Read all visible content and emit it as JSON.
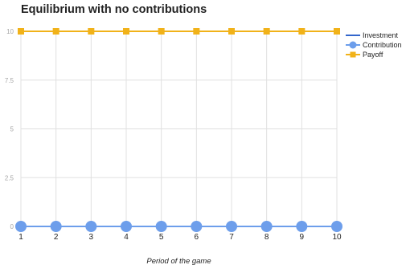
{
  "chart_data": {
    "type": "line",
    "title": "Equilibrium with no contributions",
    "xlabel": "Period of the game",
    "ylabel": "",
    "x": [
      1,
      2,
      3,
      4,
      5,
      6,
      7,
      8,
      9,
      10
    ],
    "x_ticks": [
      "1",
      "2",
      "3",
      "4",
      "5",
      "6",
      "7",
      "8",
      "9",
      "10"
    ],
    "ylim": [
      0,
      10
    ],
    "y_ticks": [
      0,
      2.5,
      5,
      7.5,
      10
    ],
    "y_tick_labels": [
      "0",
      "2.5",
      "5",
      "7.5",
      "10"
    ],
    "grid": true,
    "legend_position": "right",
    "series": [
      {
        "name": "Investment",
        "values": [
          0,
          0,
          0,
          0,
          0,
          0,
          0,
          0,
          0,
          0
        ],
        "color": "#3366cc",
        "marker": "none"
      },
      {
        "name": "Contribution",
        "values": [
          0,
          0,
          0,
          0,
          0,
          0,
          0,
          0,
          0,
          0
        ],
        "color": "#6d9eeb",
        "marker": "circle"
      },
      {
        "name": "Payoff",
        "values": [
          10,
          10,
          10,
          10,
          10,
          10,
          10,
          10,
          10,
          10
        ],
        "color": "#f1b219",
        "marker": "square"
      }
    ]
  }
}
